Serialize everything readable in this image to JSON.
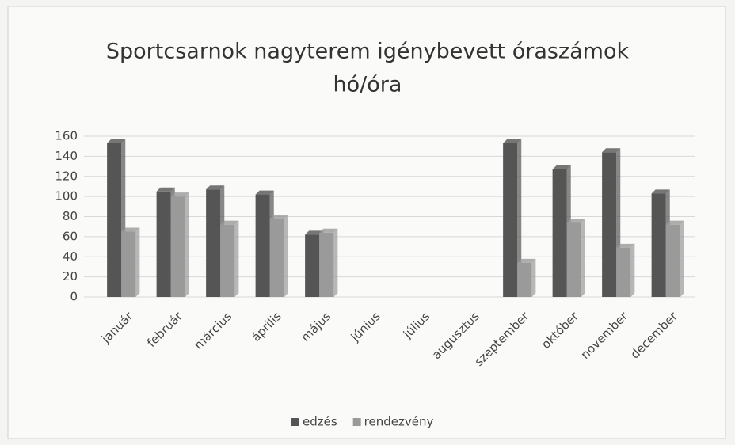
{
  "chart_data": {
    "type": "bar",
    "title": [
      "Sportcsarnok nagyterem igénybevett óraszámok",
      "hó/óra"
    ],
    "categories": [
      "január",
      "február",
      "március",
      "április",
      "május",
      "június",
      "július",
      "augusztus",
      "szeptember",
      "október",
      "november",
      "december"
    ],
    "series": [
      {
        "name": "edzés",
        "color": "#555555",
        "values": [
          153,
          105,
          107,
          102,
          62,
          null,
          null,
          null,
          153,
          127,
          144,
          103
        ]
      },
      {
        "name": "rendezvény",
        "color": "#9a9a9a",
        "values": [
          65,
          100,
          72,
          78,
          64,
          null,
          null,
          null,
          34,
          74,
          49,
          72
        ]
      }
    ],
    "ylim": [
      0,
      160
    ],
    "yticks": [
      0,
      20,
      40,
      60,
      80,
      100,
      120,
      140,
      160
    ],
    "grid": true,
    "legend": "bottom"
  }
}
